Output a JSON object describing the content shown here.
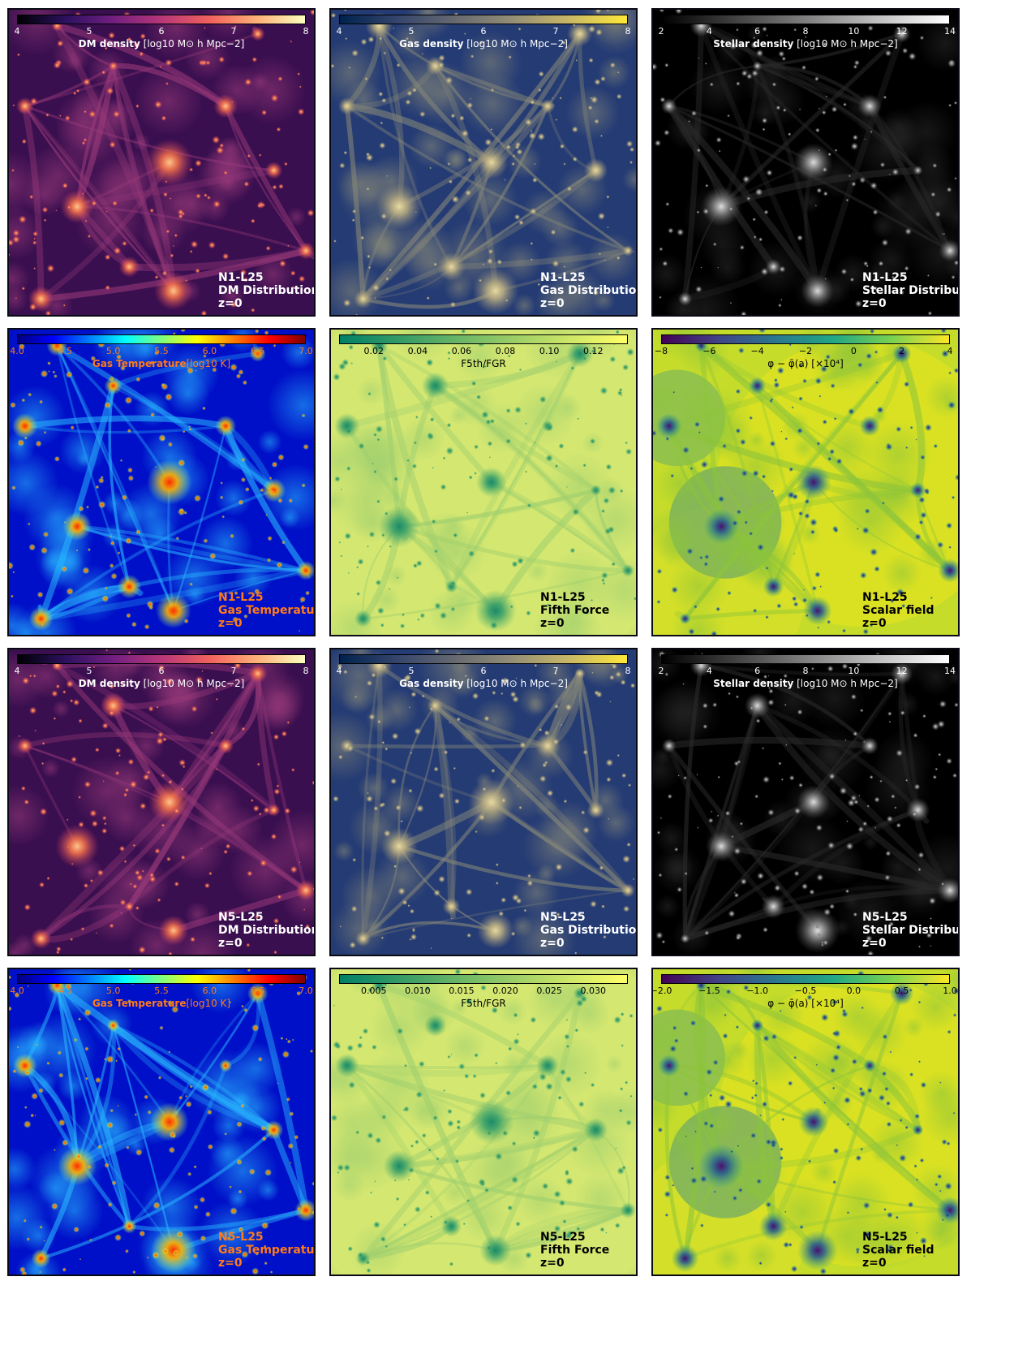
{
  "rows": [
    {
      "run": "N1-L25",
      "panels": [
        {
          "kind": "dm",
          "ticks": [
            "4",
            "5",
            "6",
            "7",
            "8"
          ],
          "label_main": "DM density",
          "label_unit": " [log10 M⊙ h Mpc−2]",
          "annot_title": "DM Distribution",
          "redshift": "z=0",
          "colors": {
            "bar": "magma",
            "text": "#ffffff"
          }
        },
        {
          "kind": "gas",
          "ticks": [
            "4",
            "5",
            "6",
            "7",
            "8"
          ],
          "label_main": "Gas density",
          "label_unit": " [log10 M⊙ h Mpc−2]",
          "annot_title": "Gas Distribution",
          "redshift": "z=0",
          "colors": {
            "bar": "cividis",
            "text": "#ffffff"
          }
        },
        {
          "kind": "stellar",
          "ticks": [
            "2",
            "4",
            "6",
            "8",
            "10",
            "12",
            "14"
          ],
          "label_main": "Stellar density",
          "label_unit": " [log10 M⊙ h Mpc−2]",
          "annot_title": "Stellar Distribution",
          "redshift": "z=0",
          "colors": {
            "bar": "gray",
            "text": "#ffffff"
          }
        }
      ]
    },
    {
      "run": "N1-L25",
      "panels": [
        {
          "kind": "temp",
          "ticks": [
            "4.0",
            "4.5",
            "5.0",
            "5.5",
            "6.0",
            "6.5",
            "7.0"
          ],
          "label_main": "Gas Temperature",
          "label_unit": "[log10 K]",
          "annot_title": "Gas Temperature",
          "redshift": "z=0",
          "colors": {
            "bar": "jet",
            "text": "#ff7a1a"
          }
        },
        {
          "kind": "force",
          "ticks": [
            "0.02",
            "0.04",
            "0.06",
            "0.08",
            "0.10",
            "0.12"
          ],
          "label_main": "F5th/FGR",
          "label_unit": "",
          "annot_title": "Fifth Force",
          "redshift": "z=0",
          "colors": {
            "bar": "summer",
            "text": "#000000"
          }
        },
        {
          "kind": "scalar",
          "ticks": [
            "−8",
            "−6",
            "−4",
            "−2",
            "0",
            "2",
            "4"
          ],
          "label_main": "φ − φ̄(a) [×10⁴]",
          "label_unit": "",
          "annot_title": "Scalar field",
          "redshift": "z=0",
          "colors": {
            "bar": "viridis",
            "text": "#000000"
          }
        }
      ]
    },
    {
      "run": "N5-L25",
      "panels": [
        {
          "kind": "dm",
          "ticks": [
            "4",
            "5",
            "6",
            "7",
            "8"
          ],
          "label_main": "DM density",
          "label_unit": " [log10 M⊙ h Mpc−2]",
          "annot_title": "DM Distribution",
          "redshift": "z=0",
          "colors": {
            "bar": "magma",
            "text": "#ffffff"
          }
        },
        {
          "kind": "gas",
          "ticks": [
            "4",
            "5",
            "6",
            "7",
            "8"
          ],
          "label_main": "Gas density",
          "label_unit": " [log10 M⊙ h Mpc−2]",
          "annot_title": "Gas Distribution",
          "redshift": "z=0",
          "colors": {
            "bar": "cividis",
            "text": "#ffffff"
          }
        },
        {
          "kind": "stellar",
          "ticks": [
            "2",
            "4",
            "6",
            "8",
            "10",
            "12",
            "14"
          ],
          "label_main": "Stellar density",
          "label_unit": " [log10 M⊙ h Mpc−2]",
          "annot_title": "Stellar Distribution",
          "redshift": "z=0",
          "colors": {
            "bar": "gray",
            "text": "#ffffff"
          }
        }
      ]
    },
    {
      "run": "N5-L25",
      "panels": [
        {
          "kind": "temp",
          "ticks": [
            "4.0",
            "4.5",
            "5.0",
            "5.5",
            "6.0",
            "6.5",
            "7.0"
          ],
          "label_main": "Gas Temperature",
          "label_unit": "[log10 K]",
          "annot_title": "Gas Temperature",
          "redshift": "z=0",
          "colors": {
            "bar": "jet",
            "text": "#ff7a1a"
          }
        },
        {
          "kind": "force",
          "ticks": [
            "0.005",
            "0.010",
            "0.015",
            "0.020",
            "0.025",
            "0.030"
          ],
          "label_main": "F5th/FGR",
          "label_unit": "",
          "annot_title": "Fifth Force",
          "redshift": "z=0",
          "colors": {
            "bar": "summer",
            "text": "#000000"
          }
        },
        {
          "kind": "scalar",
          "ticks": [
            "−2.0",
            "−1.5",
            "−1.0",
            "−0.5",
            "0.0",
            "0.5",
            "1.0"
          ],
          "label_main": "φ − φ̄(a) [×10⁴]",
          "label_unit": "",
          "annot_title": "Scalar field",
          "redshift": "z=0",
          "colors": {
            "bar": "viridis",
            "text": "#000000"
          }
        }
      ]
    }
  ]
}
